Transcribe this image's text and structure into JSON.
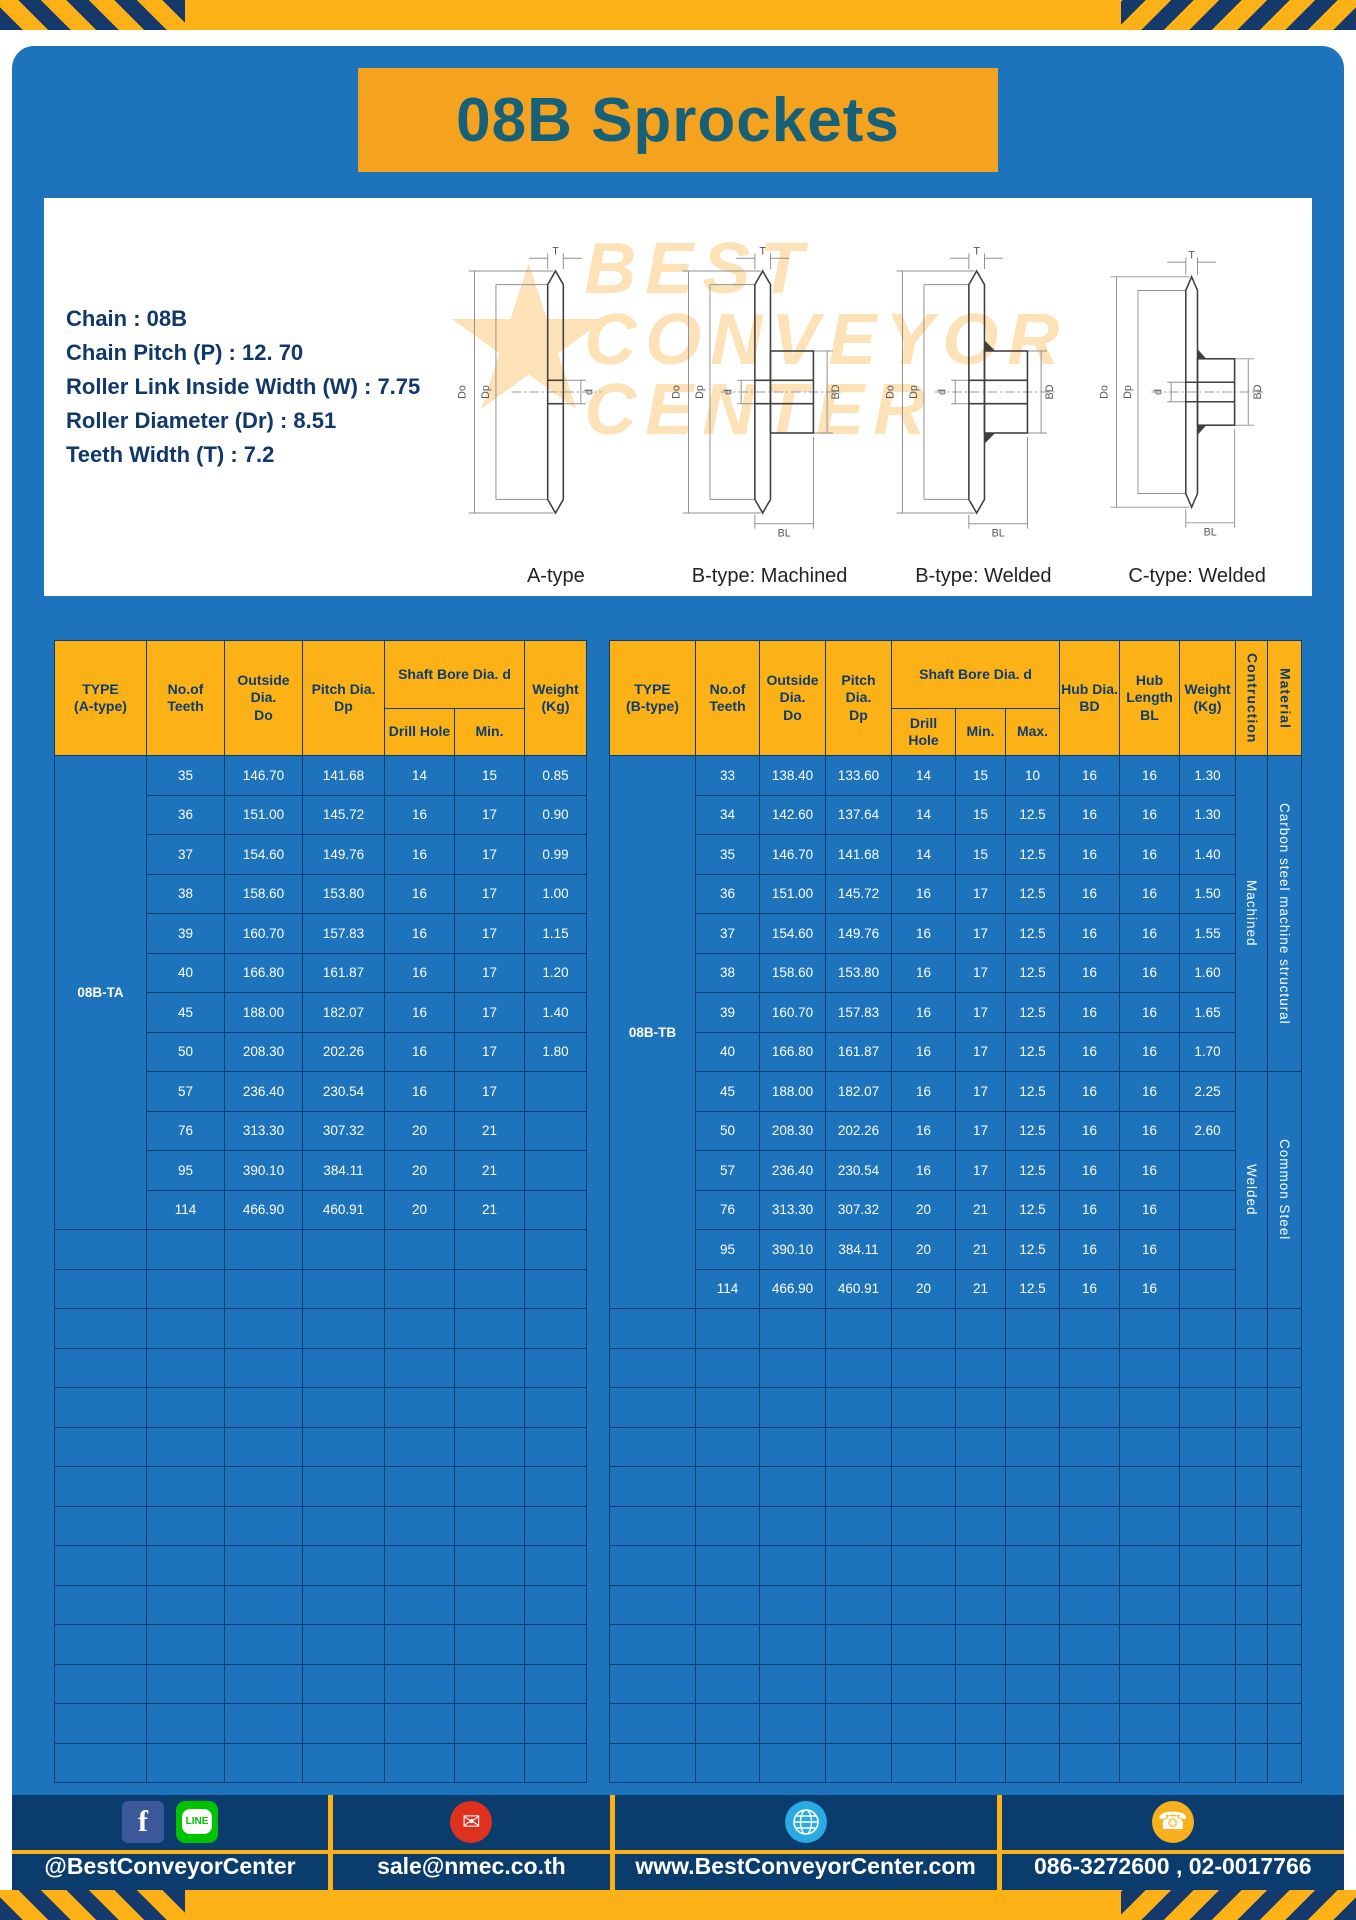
{
  "title": "08B Sprockets",
  "specs": {
    "lines": [
      "Chain : 08B",
      "Chain Pitch (P) : 12. 70",
      "Roller Link Inside Width (W) : 7.75",
      "Roller Diameter (Dr) : 8.51",
      "Teeth Width (T) : 7.2"
    ]
  },
  "diagram": {
    "watermark": {
      "line1": "BEST",
      "line2": "CONVEYOR",
      "line3": "CENTER",
      "star": "★"
    },
    "captions": [
      "A-type",
      "B-type: Machined",
      "B-type: Welded",
      "C-type: Welded"
    ],
    "dims": {
      "T": "T",
      "Do": "Do",
      "Dp": "Dp",
      "d": "d",
      "BD": "BD",
      "BL": "BL"
    }
  },
  "table_a": {
    "type_label": "08B-TA",
    "header": {
      "type": "TYPE\n(A-type)",
      "teeth": "No.of\nTeeth",
      "outside": "Outside\nDia.\nDo",
      "pitch": "Pitch Dia.\nDp",
      "shaft_bore": "Shaft Bore Dia. d",
      "drill_hole": "Drill Hole",
      "min": "Min.",
      "weight": "Weight\n(Kg)"
    },
    "rows": [
      [
        "35",
        "146.70",
        "141.68",
        "14",
        "15",
        "0.85"
      ],
      [
        "36",
        "151.00",
        "145.72",
        "16",
        "17",
        "0.90"
      ],
      [
        "37",
        "154.60",
        "149.76",
        "16",
        "17",
        "0.99"
      ],
      [
        "38",
        "158.60",
        "153.80",
        "16",
        "17",
        "1.00"
      ],
      [
        "39",
        "160.70",
        "157.83",
        "16",
        "17",
        "1.15"
      ],
      [
        "40",
        "166.80",
        "161.87",
        "16",
        "17",
        "1.20"
      ],
      [
        "45",
        "188.00",
        "182.07",
        "16",
        "17",
        "1.40"
      ],
      [
        "50",
        "208.30",
        "202.26",
        "16",
        "17",
        "1.80"
      ],
      [
        "57",
        "236.40",
        "230.54",
        "16",
        "17",
        ""
      ],
      [
        "76",
        "313.30",
        "307.32",
        "20",
        "21",
        ""
      ],
      [
        "95",
        "390.10",
        "384.11",
        "20",
        "21",
        ""
      ],
      [
        "114",
        "466.90",
        "460.91",
        "20",
        "21",
        ""
      ]
    ],
    "empty_rows": 14
  },
  "table_b": {
    "type_label": "08B-TB",
    "header": {
      "type": "TYPE\n(B-type)",
      "teeth": "No.of\nTeeth",
      "outside": "Outside\nDia.\nDo",
      "pitch": "Pitch Dia.\nDp",
      "shaft_bore": "Shaft Bore Dia. d",
      "drill_hole": "Drill Hole",
      "min": "Min.",
      "max": "Max.",
      "hub_dia": "Hub Dia.\nBD",
      "hub_length": "Hub\nLength\nBL",
      "weight": "Weight\n(Kg)",
      "construction": "Contruction",
      "material": "Material"
    },
    "rows": [
      [
        "33",
        "138.40",
        "133.60",
        "14",
        "15",
        "10",
        "16",
        "16",
        "1.30"
      ],
      [
        "34",
        "142.60",
        "137.64",
        "14",
        "15",
        "12.5",
        "16",
        "16",
        "1.30"
      ],
      [
        "35",
        "146.70",
        "141.68",
        "14",
        "15",
        "12.5",
        "16",
        "16",
        "1.40"
      ],
      [
        "36",
        "151.00",
        "145.72",
        "16",
        "17",
        "12.5",
        "16",
        "16",
        "1.50"
      ],
      [
        "37",
        "154.60",
        "149.76",
        "16",
        "17",
        "12.5",
        "16",
        "16",
        "1.55"
      ],
      [
        "38",
        "158.60",
        "153.80",
        "16",
        "17",
        "12.5",
        "16",
        "16",
        "1.60"
      ],
      [
        "39",
        "160.70",
        "157.83",
        "16",
        "17",
        "12.5",
        "16",
        "16",
        "1.65"
      ],
      [
        "40",
        "166.80",
        "161.87",
        "16",
        "17",
        "12.5",
        "16",
        "16",
        "1.70"
      ],
      [
        "45",
        "188.00",
        "182.07",
        "16",
        "17",
        "12.5",
        "16",
        "16",
        "2.25"
      ],
      [
        "50",
        "208.30",
        "202.26",
        "16",
        "17",
        "12.5",
        "16",
        "16",
        "2.60"
      ],
      [
        "57",
        "236.40",
        "230.54",
        "16",
        "17",
        "12.5",
        "16",
        "16",
        ""
      ],
      [
        "76",
        "313.30",
        "307.32",
        "20",
        "21",
        "12.5",
        "16",
        "16",
        ""
      ],
      [
        "95",
        "390.10",
        "384.11",
        "20",
        "21",
        "12.5",
        "16",
        "16",
        ""
      ],
      [
        "114",
        "466.90",
        "460.91",
        "20",
        "21",
        "12.5",
        "16",
        "16",
        ""
      ]
    ],
    "construction_groups": [
      {
        "label": "Machined",
        "span": 8
      },
      {
        "label": "Welded",
        "span": 6
      }
    ],
    "material_groups": [
      {
        "label": "Carbon steel  machine structural",
        "span": 8
      },
      {
        "label": "Common  Steel",
        "span": 6
      }
    ],
    "empty_rows": 12
  },
  "footer": {
    "line_icon_text": "LINE",
    "sections": [
      {
        "label": "@BestConveyorCenter"
      },
      {
        "label": "sale@nmec.co.th"
      },
      {
        "label": "www.BestConveyorCenter.com"
      },
      {
        "label": "086-3272600 , 02-0017766"
      }
    ]
  }
}
